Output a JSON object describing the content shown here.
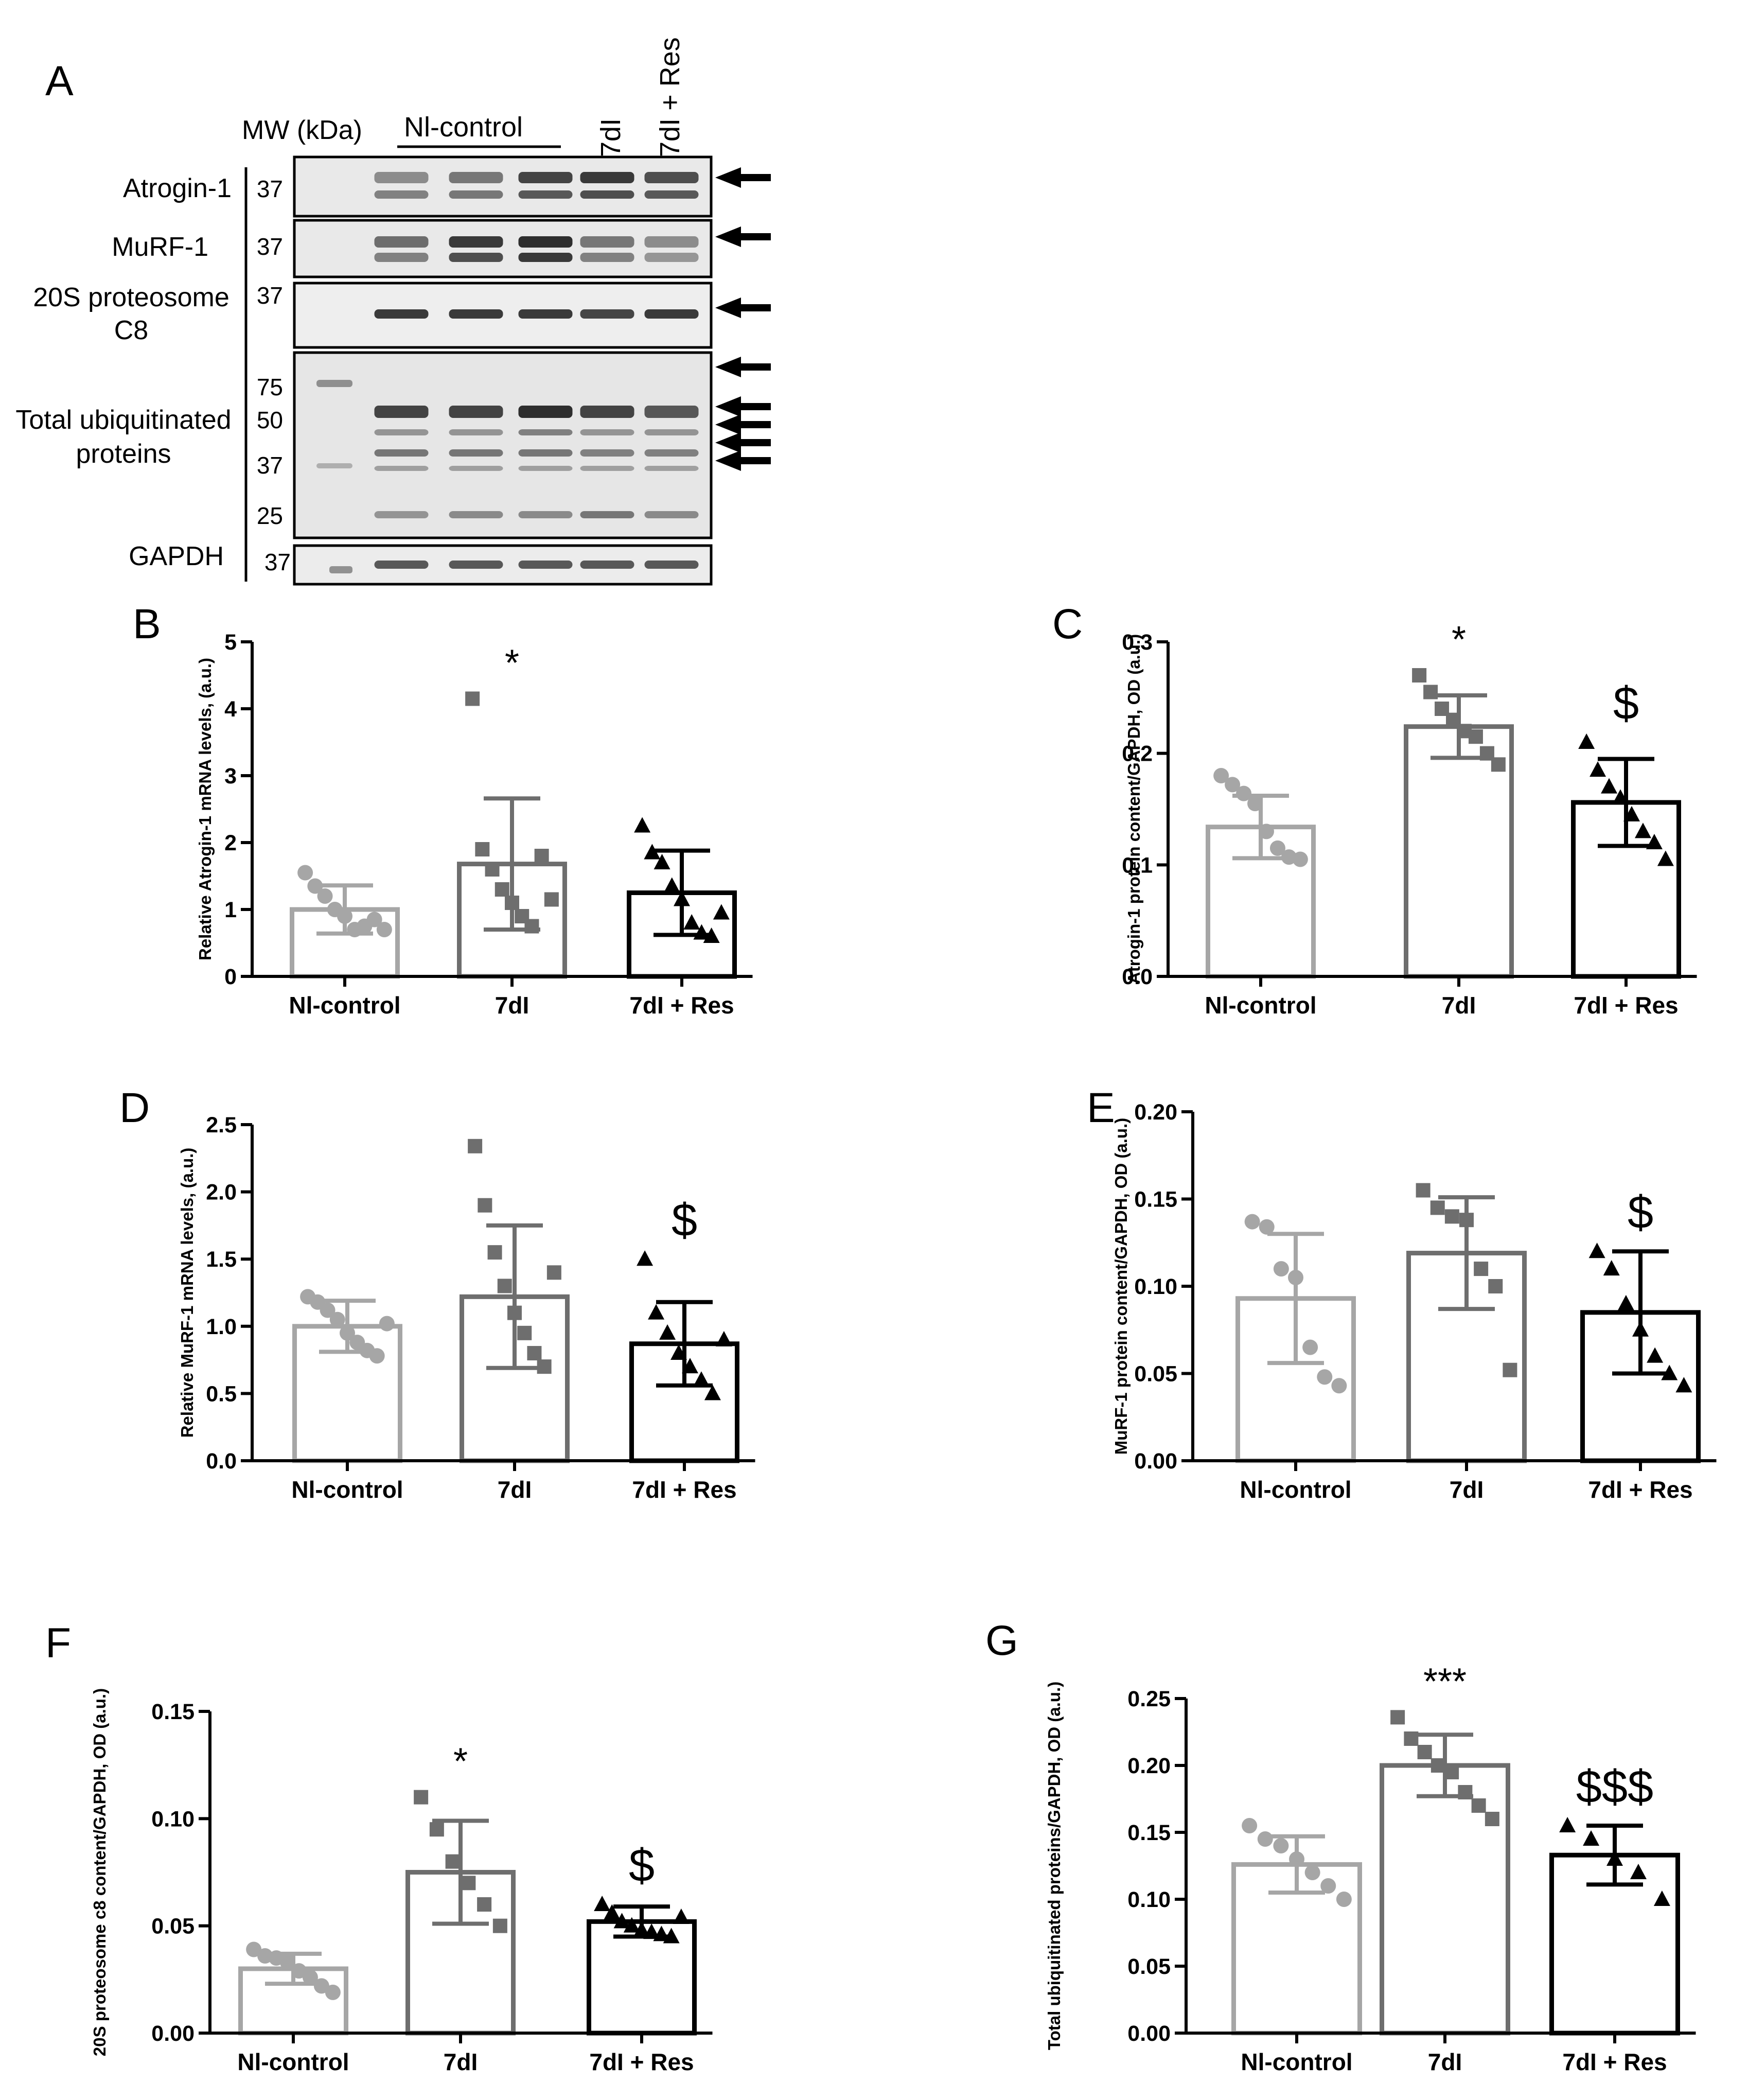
{
  "colors": {
    "nl_control": "#a6a6a6",
    "d7": "#6e6e6e",
    "d7res": "#000000",
    "axis": "#000000"
  },
  "blot": {
    "panel_label": "A",
    "mw_header": "MW (kDa)",
    "group_labels": [
      "Nl-control",
      "7dI",
      "7dI + Res"
    ],
    "rows": [
      {
        "label": "Atrogin-1",
        "markers": [
          "37"
        ]
      },
      {
        "label": "MuRF-1",
        "markers": [
          "37"
        ]
      },
      {
        "label": "20S proteosome C8",
        "markers": [
          "37"
        ]
      },
      {
        "label": "Total ubiquitinated proteins",
        "markers": [
          "75",
          "50",
          "37",
          "25"
        ]
      },
      {
        "label": "GAPDH",
        "markers": [
          "37"
        ]
      }
    ]
  },
  "chart_data": [
    {
      "panel": "B",
      "type": "bar",
      "categories": [
        "Nl-control",
        "7dI",
        "7dI + Res"
      ],
      "ylabel": "Relative Atrogin-1 mRNA levels, (a.u.)",
      "ylim": [
        0,
        5
      ],
      "yticks": [
        "0",
        "1",
        "2",
        "3",
        "4",
        "5"
      ],
      "values": [
        1.0,
        1.68,
        1.25
      ],
      "errors": [
        0.36,
        0.98,
        0.63
      ],
      "points": [
        [
          1.55,
          1.35,
          1.2,
          1.0,
          0.9,
          0.7,
          0.75,
          0.85,
          0.7
        ],
        [
          4.15,
          1.9,
          1.6,
          1.3,
          1.1,
          0.9,
          0.75,
          1.8,
          1.15
        ],
        [
          2.25,
          1.85,
          1.7,
          1.35,
          1.15,
          0.8,
          0.65,
          0.6,
          0.95
        ]
      ],
      "marker_shapes": [
        "circle",
        "square",
        "triangle"
      ],
      "annotations": [
        "",
        "*",
        ""
      ]
    },
    {
      "panel": "C",
      "type": "bar",
      "categories": [
        "Nl-control",
        "7dI",
        "7dI + Res"
      ],
      "ylabel": "Atrogin-1 protein content/GAPDH, OD (a.u.)",
      "ylim": [
        0,
        0.3
      ],
      "yticks": [
        "0.0",
        "0.1",
        "0.2",
        "0.3"
      ],
      "values": [
        0.134,
        0.224,
        0.156
      ],
      "errors": [
        0.028,
        0.028,
        0.039
      ],
      "points": [
        [
          0.18,
          0.172,
          0.164,
          0.155,
          0.13,
          0.115,
          0.107,
          0.105
        ],
        [
          0.27,
          0.255,
          0.24,
          0.23,
          0.22,
          0.215,
          0.2,
          0.19
        ],
        [
          0.21,
          0.185,
          0.17,
          0.16,
          0.145,
          0.13,
          0.12,
          0.105
        ]
      ],
      "marker_shapes": [
        "circle",
        "square",
        "triangle"
      ],
      "annotations": [
        "",
        "*",
        "$"
      ]
    },
    {
      "panel": "D",
      "type": "bar",
      "categories": [
        "Nl-control",
        "7dI",
        "7dI + Res"
      ],
      "ylabel": "Relative MuRF-1 mRNA levels, (a.u.)",
      "ylim": [
        0,
        2.5
      ],
      "yticks": [
        "0.0",
        "0.5",
        "1.0",
        "1.5",
        "2.0",
        "2.5"
      ],
      "values": [
        1.0,
        1.22,
        0.87
      ],
      "errors": [
        0.19,
        0.53,
        0.31
      ],
      "points": [
        [
          1.22,
          1.18,
          1.12,
          1.05,
          0.95,
          0.88,
          0.82,
          0.78,
          1.02
        ],
        [
          2.34,
          1.9,
          1.55,
          1.3,
          1.1,
          0.95,
          0.8,
          0.7,
          1.4
        ],
        [
          1.5,
          1.1,
          0.95,
          0.8,
          0.7,
          0.6,
          0.5,
          0.9
        ]
      ],
      "marker_shapes": [
        "circle",
        "square",
        "triangle"
      ],
      "annotations": [
        "",
        "",
        "$"
      ]
    },
    {
      "panel": "E",
      "type": "bar",
      "categories": [
        "Nl-control",
        "7dI",
        "7dI + Res"
      ],
      "ylabel": "MuRF-1 protein content/GAPDH, OD (a.u.)",
      "ylim": [
        0,
        0.2
      ],
      "yticks": [
        "0.00",
        "0.05",
        "0.10",
        "0.15",
        "0.20"
      ],
      "values": [
        0.093,
        0.119,
        0.085
      ],
      "errors": [
        0.037,
        0.032,
        0.035
      ],
      "points": [
        [
          0.137,
          0.134,
          0.11,
          0.105,
          0.065,
          0.048,
          0.043
        ],
        [
          0.155,
          0.145,
          0.14,
          0.138,
          0.11,
          0.1,
          0.052
        ],
        [
          0.12,
          0.11,
          0.09,
          0.075,
          0.06,
          0.05,
          0.043
        ]
      ],
      "marker_shapes": [
        "circle",
        "square",
        "triangle"
      ],
      "annotations": [
        "",
        "",
        "$"
      ]
    },
    {
      "panel": "F",
      "type": "bar",
      "categories": [
        "Nl-control",
        "7dI",
        "7dI + Res"
      ],
      "ylabel": "20S proteosome c8 content/GAPDH, OD (a.u.)",
      "ylim": [
        0,
        0.15
      ],
      "yticks": [
        "0.00",
        "0.05",
        "0.10",
        "0.15"
      ],
      "values": [
        0.03,
        0.075,
        0.052
      ],
      "errors": [
        0.007,
        0.024,
        0.007
      ],
      "points": [
        [
          0.039,
          0.036,
          0.035,
          0.033,
          0.029,
          0.026,
          0.022,
          0.019
        ],
        [
          0.11,
          0.095,
          0.08,
          0.07,
          0.06,
          0.05
        ],
        [
          0.06,
          0.056,
          0.052,
          0.05,
          0.048,
          0.047,
          0.046,
          0.045,
          0.054
        ]
      ],
      "marker_shapes": [
        "circle",
        "square",
        "triangle"
      ],
      "annotations": [
        "",
        "*",
        "$"
      ]
    },
    {
      "panel": "G",
      "type": "bar",
      "categories": [
        "Nl-control",
        "7dI",
        "7dI + Res"
      ],
      "ylabel": "Total ubiquitinated proteins/GAPDH, OD (a.u.)",
      "ylim": [
        0,
        0.25
      ],
      "yticks": [
        "0.00",
        "0.05",
        "0.10",
        "0.15",
        "0.20",
        "0.25"
      ],
      "values": [
        0.126,
        0.2,
        0.133
      ],
      "errors": [
        0.021,
        0.023,
        0.022
      ],
      "points": [
        [
          0.155,
          0.145,
          0.14,
          0.13,
          0.12,
          0.11,
          0.1
        ],
        [
          0.236,
          0.22,
          0.21,
          0.2,
          0.195,
          0.18,
          0.17,
          0.16
        ],
        [
          0.155,
          0.145,
          0.13,
          0.12,
          0.1
        ]
      ],
      "marker_shapes": [
        "circle",
        "square",
        "triangle"
      ],
      "annotations": [
        "",
        "***",
        "$$$"
      ]
    }
  ]
}
